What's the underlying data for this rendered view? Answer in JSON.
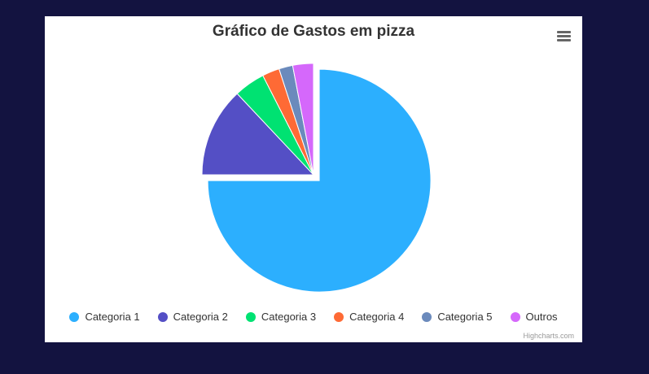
{
  "chart_data": {
    "type": "pie",
    "title": "Gráfico de Gastos em pizza",
    "categories": [
      "Categoria 1",
      "Categoria 2",
      "Categoria 3",
      "Categoria 4",
      "Categoria 5",
      "Outros"
    ],
    "values": [
      75,
      13,
      4.5,
      2.5,
      2,
      3
    ],
    "colors": [
      "#2caffe",
      "#544fc5",
      "#00e272",
      "#fe6a35",
      "#6b8abc",
      "#d568fb"
    ],
    "sliced": [
      "Categoria 1"
    ],
    "legend_position": "bottom",
    "menu_icon": "hamburger-icon",
    "credits": "Highcharts.com"
  }
}
